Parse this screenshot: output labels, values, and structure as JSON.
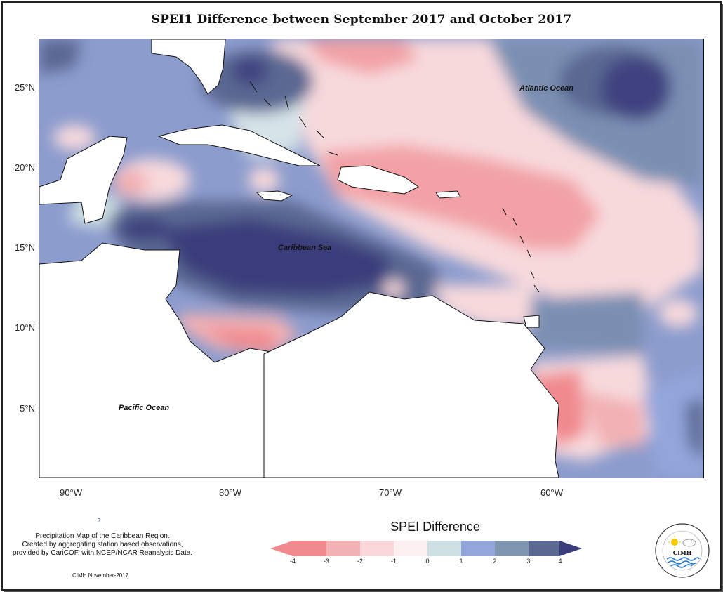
{
  "title": "SPEI1 Difference between September 2017 and October 2017",
  "axes": {
    "y_ticks": [
      "25°N",
      "20°N",
      "15°N",
      "10°N",
      "5°N"
    ],
    "x_ticks": [
      "90°W",
      "80°W",
      "70°W",
      "60°W"
    ]
  },
  "labels": {
    "atlantic": "Atlantic Ocean",
    "caribbean": "Caribbean Sea",
    "pacific": "Pacific Ocean"
  },
  "legend": {
    "title": "SPEI Difference",
    "ticks": [
      "-4",
      "-3",
      "-2",
      "-1",
      "0",
      "1",
      "2",
      "3",
      "4"
    ],
    "colors": [
      "#f08a8f",
      "#f2b1b4",
      "#f9d7da",
      "#fcefef",
      "#cfe0e4",
      "#93a6db",
      "#7e96b0",
      "#5a6892",
      "#3b3d7a"
    ]
  },
  "note": {
    "lines": [
      "Precipitation Map of the Caribbean Region.",
      "Created by aggregating station based observations,",
      "provided by CariCOF, with NCEP/NCAR Reanalysis Data."
    ],
    "credit": "CIMH November-2017",
    "stray": "7"
  },
  "logo": {
    "text": "CIMH"
  }
}
